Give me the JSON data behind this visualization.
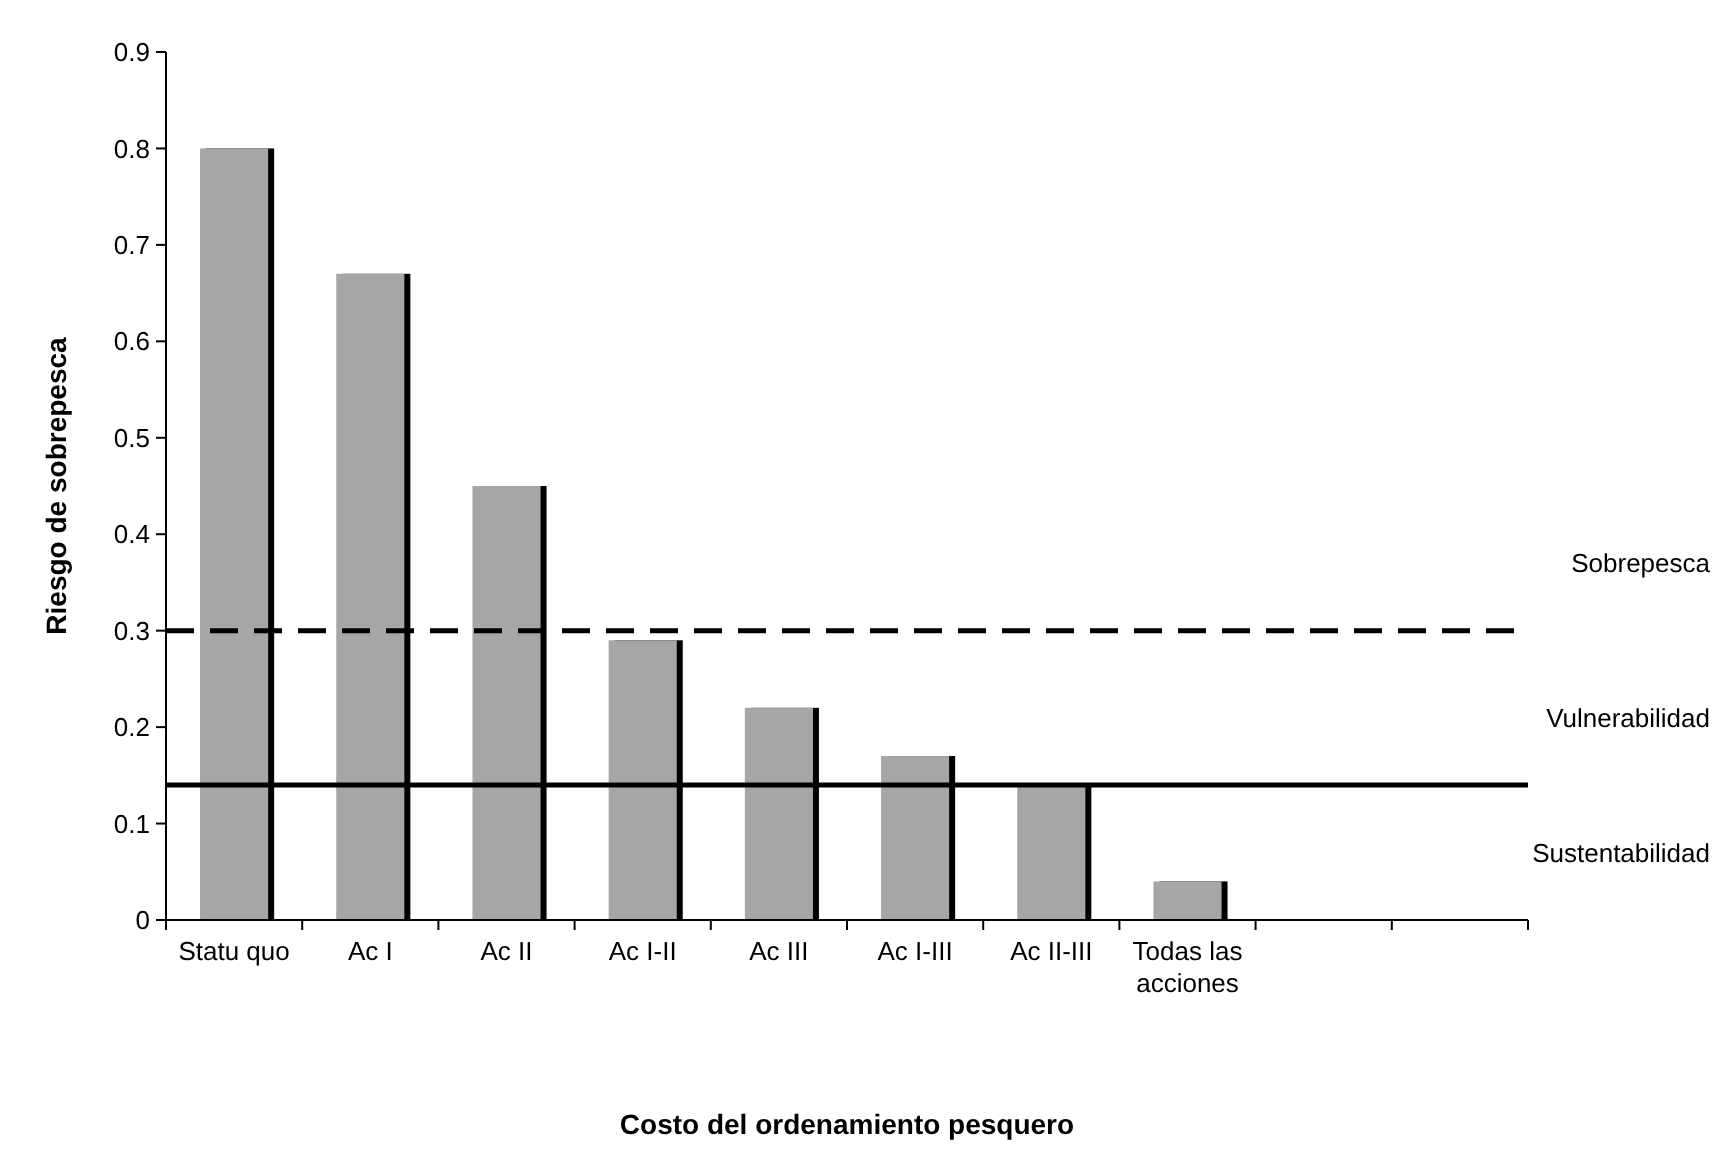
{
  "chart_data": {
    "type": "bar",
    "xlabel": "Costo del ordenamiento pesquero",
    "ylabel": "Riesgo de sobrepesca",
    "categories": [
      "Statu quo",
      "Ac I",
      "Ac II",
      "Ac I-II",
      "Ac III",
      "Ac I-III",
      "Ac II-III",
      "Todas las acciones",
      null,
      null
    ],
    "values": [
      0.8,
      0.67,
      0.45,
      0.29,
      0.22,
      0.17,
      0.14,
      0.04,
      null,
      null
    ],
    "color": "#a6a6a6",
    "ylim": [
      0,
      0.9
    ],
    "yticks": [
      0,
      0.1,
      0.2,
      0.3,
      0.4,
      0.5,
      0.6,
      0.7,
      0.8,
      0.9
    ],
    "grid": false,
    "ref_lines": [
      {
        "axis": "y",
        "value": 0.3,
        "color": "#000000",
        "line_style": "dashed"
      },
      {
        "axis": "y",
        "value": 0.14,
        "color": "#000000",
        "line_style": "solid"
      }
    ],
    "annotations": [
      "Sobrepesca",
      "Vulnerabilidad",
      "Sustentabilidad"
    ]
  }
}
